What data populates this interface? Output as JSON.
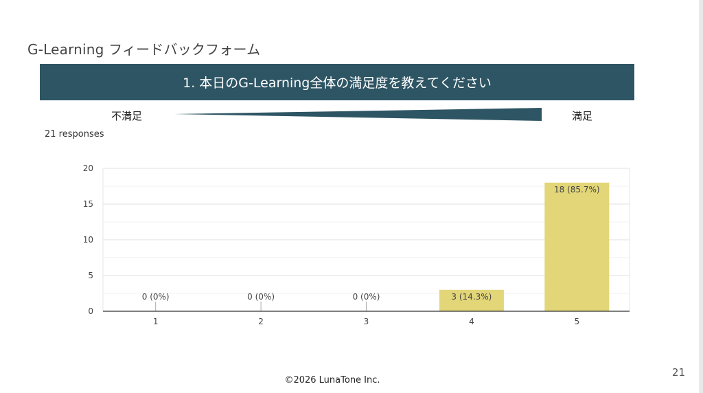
{
  "slide": {
    "title": "G-Learning フィードバックフォーム",
    "question": "1. 本日のG-Learning全体の満足度を教えてください",
    "scale_low": "不満足",
    "scale_high": "満足",
    "responses": "21 responses",
    "footer": "©2026 LunaTone Inc.",
    "page_number": "21"
  },
  "colors": {
    "banner": "#2e5564",
    "bar": "#e2d678",
    "grid": "#e6e6e6",
    "axis": "#333333"
  },
  "chart_data": {
    "type": "bar",
    "categories": [
      "1",
      "2",
      "3",
      "4",
      "5"
    ],
    "values": [
      0,
      0,
      0,
      3,
      18
    ],
    "data_labels": [
      "0 (0%)",
      "0 (0%)",
      "0 (0%)",
      "3 (14.3%)",
      "18 (85.7%)"
    ],
    "ylim": [
      0,
      20
    ],
    "yticks": [
      0,
      5,
      10,
      15,
      20
    ],
    "grid": true,
    "title": "",
    "xlabel": "",
    "ylabel": ""
  }
}
